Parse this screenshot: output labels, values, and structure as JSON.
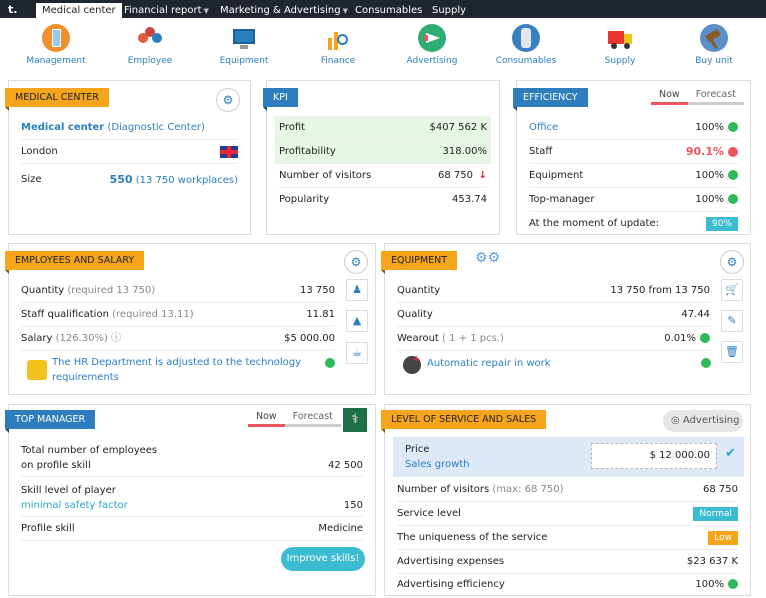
{
  "nav": {
    "logo": "t.",
    "tabs": [
      {
        "label": "Medical center"
      },
      {
        "label": "Financial report"
      },
      {
        "label": "Marketing & Advertising"
      },
      {
        "label": "Consumables"
      },
      {
        "label": "Supply"
      }
    ]
  },
  "icons": [
    {
      "label": "Management",
      "name": "building-icon"
    },
    {
      "label": "Employee",
      "name": "employees-icon"
    },
    {
      "label": "Equipment",
      "name": "computer-icon"
    },
    {
      "label": "Finance",
      "name": "finance-chart-icon"
    },
    {
      "label": "Advertising",
      "name": "megaphone-icon"
    },
    {
      "label": "Consumables",
      "name": "canister-icon"
    },
    {
      "label": "Supply",
      "name": "truck-icon"
    },
    {
      "label": "Buy unit",
      "name": "gavel-icon"
    }
  ],
  "medical": {
    "title": "MEDICAL CENTER",
    "name_link": "Medical center",
    "name_type": "(Diagnostic Center)",
    "city": "London",
    "size_label": "Size",
    "size_value": "550",
    "size_extra": "(13 750 workplaces)"
  },
  "kpi": {
    "title": "KPI",
    "rows": [
      {
        "label": "Profit",
        "value": "$407 562 K"
      },
      {
        "label": "Profitability",
        "value": "318.00%"
      },
      {
        "label": "Number of visitors",
        "value": "68 750"
      },
      {
        "label": "Popularity",
        "value": "453.74"
      }
    ]
  },
  "efficiency": {
    "title": "EFFICIENCY",
    "tab_now": "Now",
    "tab_forecast": "Forecast",
    "rows": [
      {
        "label": "Office",
        "value": "100%"
      },
      {
        "label": "Staff",
        "value": "90.1%"
      },
      {
        "label": "Equipment",
        "value": "100%"
      },
      {
        "label": "Top-manager",
        "value": "100%"
      }
    ],
    "update_label": "At the moment of update:",
    "update_value": "90%"
  },
  "employees": {
    "title": "EMPLOYEES AND SALARY",
    "qty_label": "Quantity",
    "qty_req": "(required 13 750)",
    "qty_value": "13 750",
    "qual_label": "Staff qualification",
    "qual_req": "(required 13.11)",
    "qual_value": "11.81",
    "salary_label": "Salary",
    "salary_pct": "(126.30%)",
    "salary_value": "$5 000.00",
    "hr_text1": "The HR Department is adjusted to the technology",
    "hr_text2": "requirements"
  },
  "equipment": {
    "title": "EQUIPMENT",
    "qty_label": "Quantity",
    "qty_value": "13 750 from 13 750",
    "qual_label": "Quality",
    "qual_value": "47.44",
    "wear_label": "Wearout",
    "wear_extra": "( 1 + 1 pcs.)",
    "wear_value": "0.01%",
    "repair": "Automatic repair in work"
  },
  "topmanager": {
    "title": "TOP MANAGER",
    "tab_now": "Now",
    "tab_forecast": "Forecast",
    "total_label1": "Total number of employees",
    "total_label2": "on profile skill",
    "total_value": "42 500",
    "skill_label": "Skill level of player",
    "skill_sub": "minimal safety factor",
    "skill_value": "150",
    "profile_label": "Profile skill",
    "profile_value": "Medicine",
    "improve": "Improve skills!"
  },
  "service": {
    "title": "LEVEL OF SERVICE AND SALES",
    "adv_button": "Advertising",
    "price_label": "Price",
    "price_link": "Sales growth",
    "price_value": "$ 12 000.00",
    "visitors_label": "Number of visitors",
    "visitors_max": "(max: 68 750)",
    "visitors_value": "68 750",
    "level_label": "Service level",
    "level_value": "Normal",
    "unique_label": "The uniqueness of the service",
    "unique_value": "Low",
    "adexp_label": "Advertising expenses",
    "adexp_value": "$23 637 K",
    "adeff_label": "Advertising efficiency",
    "adeff_value": "100%"
  },
  "colors": {
    "orange": "#f4a51c",
    "blue": "#2e7ebf",
    "green": "#2fba5a",
    "red": "#e8555c",
    "teal": "#3cbcd0",
    "nav": "#20262e"
  }
}
